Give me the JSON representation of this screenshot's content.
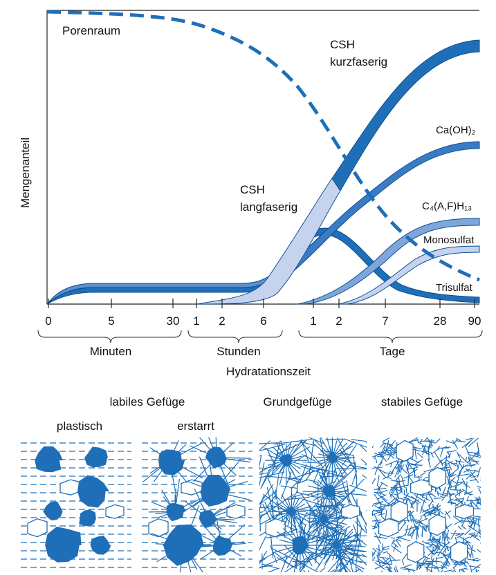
{
  "diagram": {
    "y_axis_label": "Mengenanteil",
    "x_axis_label": "Hydratationszeit",
    "x_ticks": [
      "0",
      "5",
      "30",
      "1",
      "2",
      "6",
      "1",
      "2",
      "7",
      "28",
      "90"
    ],
    "x_groups": [
      "Minuten",
      "Stunden",
      "Tage"
    ],
    "curve_labels": {
      "porenraum": "Porenraum",
      "csh_kurz": [
        "CSH",
        "kurzfaserig"
      ],
      "csh_lang": [
        "CSH",
        "langfaserig"
      ],
      "caoh": "Ca(OH)₂",
      "c4afh": "C₄(A,F)H₁₃",
      "monosulfat": "Monosulfat",
      "trisulfat": "Trisulfat"
    },
    "structures": {
      "labil": "labiles Gefüge",
      "plastisch": "plastisch",
      "erstarrt": "erstarrt",
      "grund": "Grundgefüge",
      "stabil": "stabiles Gefüge"
    }
  }
}
